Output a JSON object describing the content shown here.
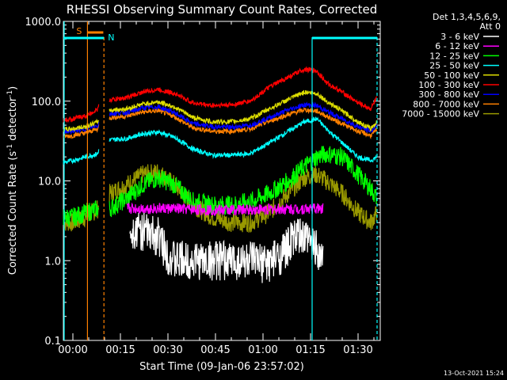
{
  "chart_data": {
    "type": "line",
    "title": "RHESSI Observing Summary Count Rates, Corrected",
    "xlabel": "Start Time (09-Jan-06 23:57:02)",
    "ylabel_html": "Corrected Count Rate (s",
    "ylabel_sup1": "-1",
    "ylabel_mid": " detector",
    "ylabel_sup2": "-1",
    "ylabel_end": ")",
    "y_scale": "log",
    "ylim": [
      0.1,
      1000
    ],
    "xlim_minutes": [
      -3,
      97
    ],
    "x_ticks": [
      {
        "label": "00:00",
        "t": 0
      },
      {
        "label": "00:15",
        "t": 15
      },
      {
        "label": "00:30",
        "t": 30
      },
      {
        "label": "00:45",
        "t": 45
      },
      {
        "label": "01:00",
        "t": 60
      },
      {
        "label": "01:15",
        "t": 75
      },
      {
        "label": "01:30",
        "t": 90
      }
    ],
    "y_ticks": [
      {
        "label": "0.1",
        "v": 0.1
      },
      {
        "label": "1.0",
        "v": 1
      },
      {
        "label": "10.0",
        "v": 10
      },
      {
        "label": "100.0",
        "v": 100
      },
      {
        "label": "1000.0",
        "v": 1000
      }
    ],
    "legend_header": [
      "Det 1,3,4,5,6,9,",
      "Att 0"
    ],
    "legend_position": "right",
    "timestamp": "13-Oct-2021 15:24",
    "markers": [
      {
        "label": "S",
        "color": "#ff8000"
      },
      {
        "label": "N",
        "color": "#00ffff"
      }
    ],
    "series": [
      {
        "name": "3 - 6 keV",
        "color": "#ffffff"
      },
      {
        "name": "6 - 12 keV",
        "color": "#ff00ff"
      },
      {
        "name": "12 - 25 keV",
        "color": "#00ff00"
      },
      {
        "name": "25 - 50 keV",
        "color": "#00ffff"
      },
      {
        "name": "50 - 100 keV",
        "color": "#dddd00"
      },
      {
        "name": "100 - 300 keV",
        "color": "#ff0000"
      },
      {
        "name": "300 - 800 keV",
        "color": "#0000ff"
      },
      {
        "name": "800 - 7000 keV",
        "color": "#ff8000"
      },
      {
        "name": "7000 - 15000 keV",
        "color": "#999900"
      }
    ],
    "curves": {
      "100 - 300 keV": [
        [
          -3,
          58
        ],
        [
          0,
          60
        ],
        [
          4,
          65
        ],
        [
          8,
          80
        ],
        [
          8.5,
          100
        ],
        [
          17,
          110
        ],
        [
          22,
          130
        ],
        [
          27,
          140
        ],
        [
          32,
          125
        ],
        [
          38,
          95
        ],
        [
          44,
          88
        ],
        [
          50,
          90
        ],
        [
          56,
          100
        ],
        [
          62,
          150
        ],
        [
          68,
          200
        ],
        [
          73,
          250
        ],
        [
          77,
          240
        ],
        [
          80,
          170
        ],
        [
          85,
          130
        ],
        [
          90,
          95
        ],
        [
          94,
          80
        ],
        [
          96,
          110
        ]
      ],
      "50 - 100 keV": [
        [
          -3,
          44
        ],
        [
          0,
          45
        ],
        [
          4,
          48
        ],
        [
          8,
          55
        ],
        [
          8.5,
          75
        ],
        [
          17,
          80
        ],
        [
          22,
          92
        ],
        [
          27,
          98
        ],
        [
          32,
          85
        ],
        [
          38,
          62
        ],
        [
          44,
          55
        ],
        [
          50,
          55
        ],
        [
          56,
          60
        ],
        [
          62,
          80
        ],
        [
          68,
          105
        ],
        [
          73,
          130
        ],
        [
          77,
          125
        ],
        [
          80,
          100
        ],
        [
          85,
          75
        ],
        [
          90,
          55
        ],
        [
          94,
          45
        ],
        [
          96,
          55
        ]
      ],
      "300 - 800 keV": [
        [
          -3,
          42
        ],
        [
          0,
          42
        ],
        [
          4,
          45
        ],
        [
          8,
          50
        ],
        [
          8.5,
          68
        ],
        [
          17,
          72
        ],
        [
          22,
          82
        ],
        [
          27,
          85
        ],
        [
          32,
          72
        ],
        [
          38,
          52
        ],
        [
          44,
          48
        ],
        [
          50,
          47
        ],
        [
          56,
          50
        ],
        [
          62,
          62
        ],
        [
          68,
          78
        ],
        [
          73,
          90
        ],
        [
          77,
          88
        ],
        [
          80,
          75
        ],
        [
          85,
          60
        ],
        [
          90,
          48
        ],
        [
          94,
          42
        ],
        [
          96,
          50
        ]
      ],
      "800 - 7000 keV": [
        [
          -3,
          36
        ],
        [
          0,
          37
        ],
        [
          4,
          40
        ],
        [
          8,
          45
        ],
        [
          8.5,
          60
        ],
        [
          17,
          65
        ],
        [
          22,
          73
        ],
        [
          27,
          76
        ],
        [
          32,
          64
        ],
        [
          38,
          46
        ],
        [
          44,
          42
        ],
        [
          50,
          42
        ],
        [
          56,
          45
        ],
        [
          62,
          56
        ],
        [
          68,
          68
        ],
        [
          73,
          78
        ],
        [
          77,
          75
        ],
        [
          80,
          65
        ],
        [
          85,
          52
        ],
        [
          90,
          42
        ],
        [
          94,
          37
        ],
        [
          96,
          44
        ]
      ],
      "25 - 50 keV": [
        [
          -3,
          17
        ],
        [
          0,
          18
        ],
        [
          4,
          20
        ],
        [
          8,
          22
        ],
        [
          8.5,
          32
        ],
        [
          17,
          34
        ],
        [
          22,
          39
        ],
        [
          27,
          41
        ],
        [
          32,
          35
        ],
        [
          38,
          25
        ],
        [
          44,
          21
        ],
        [
          50,
          21
        ],
        [
          56,
          22
        ],
        [
          62,
          30
        ],
        [
          68,
          42
        ],
        [
          73,
          55
        ],
        [
          77,
          60
        ],
        [
          80,
          45
        ],
        [
          85,
          30
        ],
        [
          90,
          20
        ],
        [
          94,
          18
        ],
        [
          96,
          20
        ]
      ],
      "12 - 25 keV": [
        [
          -3,
          3.5
        ],
        [
          0,
          3.5
        ],
        [
          4,
          4
        ],
        [
          8,
          4.5
        ],
        [
          8.5,
          3.8
        ],
        [
          17,
          6
        ],
        [
          22,
          9
        ],
        [
          27,
          11
        ],
        [
          32,
          9
        ],
        [
          38,
          5.5
        ],
        [
          44,
          5
        ],
        [
          50,
          5
        ],
        [
          56,
          5.5
        ],
        [
          62,
          7
        ],
        [
          68,
          10
        ],
        [
          73,
          15
        ],
        [
          77,
          20
        ],
        [
          80,
          22
        ],
        [
          85,
          20
        ],
        [
          90,
          12
        ],
        [
          94,
          8
        ],
        [
          96,
          6
        ]
      ],
      "7000 - 15000 keV": [
        [
          -3,
          3
        ],
        [
          0,
          3
        ],
        [
          4,
          3.5
        ],
        [
          8,
          4.5
        ],
        [
          8.5,
          6
        ],
        [
          17,
          9
        ],
        [
          22,
          12
        ],
        [
          27,
          13
        ],
        [
          32,
          9
        ],
        [
          38,
          5
        ],
        [
          44,
          3.5
        ],
        [
          50,
          3
        ],
        [
          56,
          3
        ],
        [
          62,
          4
        ],
        [
          68,
          7
        ],
        [
          73,
          11
        ],
        [
          77,
          12
        ],
        [
          80,
          10
        ],
        [
          85,
          7
        ],
        [
          90,
          4
        ],
        [
          94,
          3
        ],
        [
          96,
          4
        ]
      ],
      "6 - 12 keV": [
        [
          17,
          4.5
        ],
        [
          30,
          4.5
        ],
        [
          45,
          4.3
        ],
        [
          60,
          4.4
        ],
        [
          79,
          4.5
        ]
      ],
      "3 - 6 keV": [
        [
          20,
          2.5
        ],
        [
          23,
          2.2
        ],
        [
          27,
          2
        ],
        [
          30,
          1.2
        ],
        [
          32,
          1
        ],
        [
          35,
          1
        ],
        [
          42,
          1
        ],
        [
          44,
          1
        ],
        [
          48,
          1
        ],
        [
          52,
          1
        ],
        [
          54,
          1
        ],
        [
          56,
          1
        ],
        [
          60,
          0.9
        ],
        [
          63,
          1
        ],
        [
          66,
          1.2
        ],
        [
          70,
          2
        ],
        [
          74,
          1.8
        ],
        [
          77,
          1.5
        ],
        [
          79,
          1
        ]
      ]
    }
  }
}
